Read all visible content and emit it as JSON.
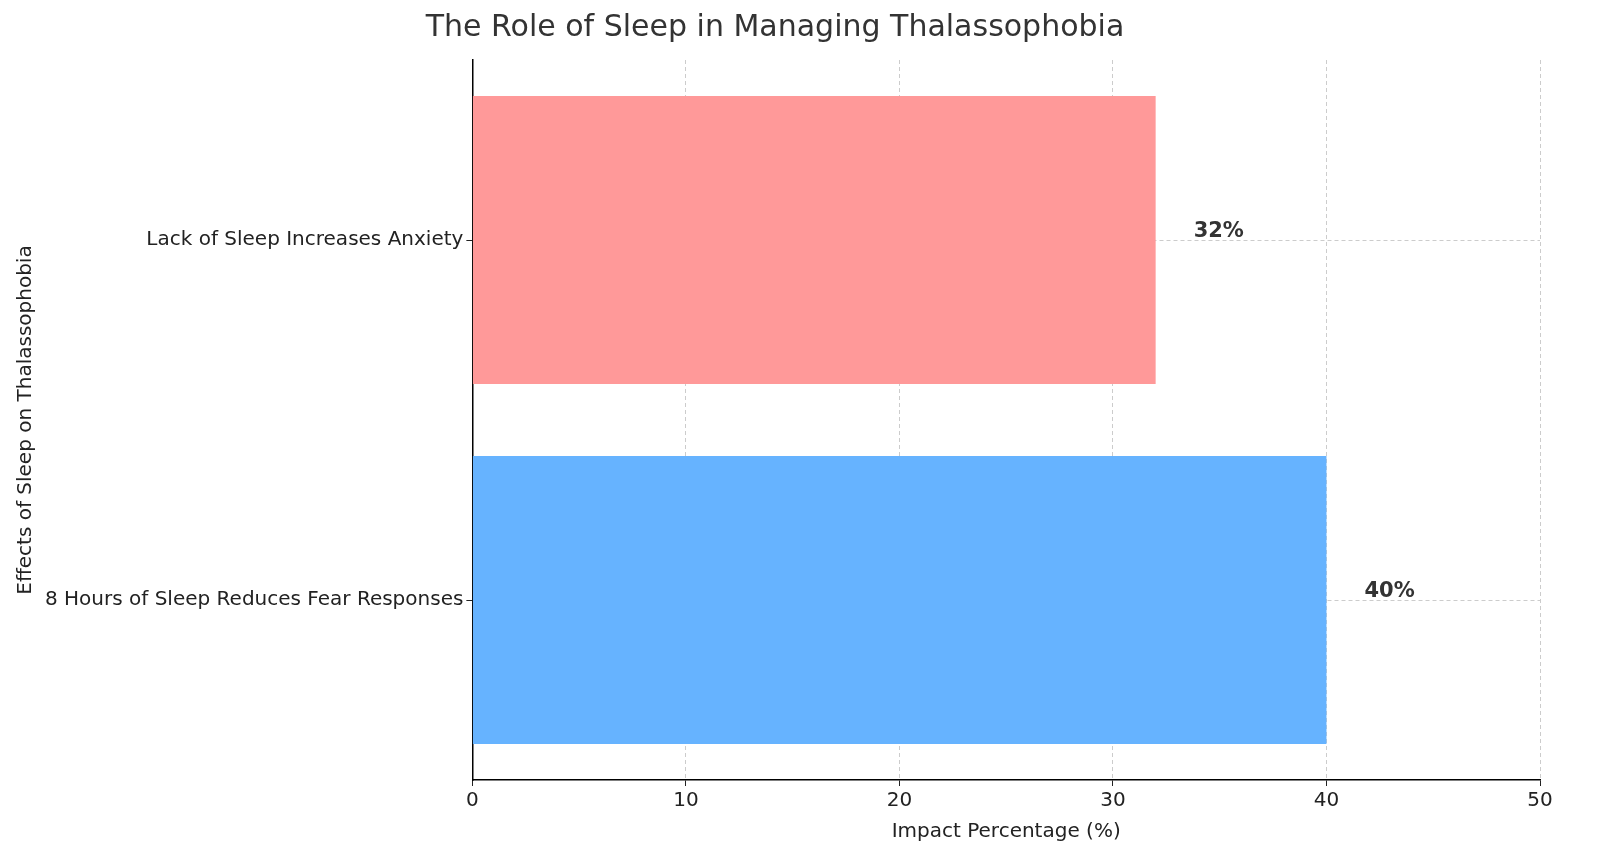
{
  "chart_data": {
    "type": "bar",
    "orientation": "horizontal",
    "title": "The Role of Sleep in Managing Thalassophobia",
    "x_label": "Impact Percentage (%)",
    "y_label": "Effects of Sleep on Thalassophobia",
    "categories": [
      "8 Hours of Sleep Reduces Fear Responses",
      "Lack of Sleep Increases Anxiety"
    ],
    "values": [
      40,
      32
    ],
    "value_labels": [
      "40%",
      "32%"
    ],
    "colors": [
      "#66b3ff",
      "#ff9999"
    ],
    "xlim": [
      0,
      50
    ],
    "xticks": [
      0,
      10,
      20,
      30,
      40,
      50
    ],
    "grid": true,
    "data_labels": true
  }
}
